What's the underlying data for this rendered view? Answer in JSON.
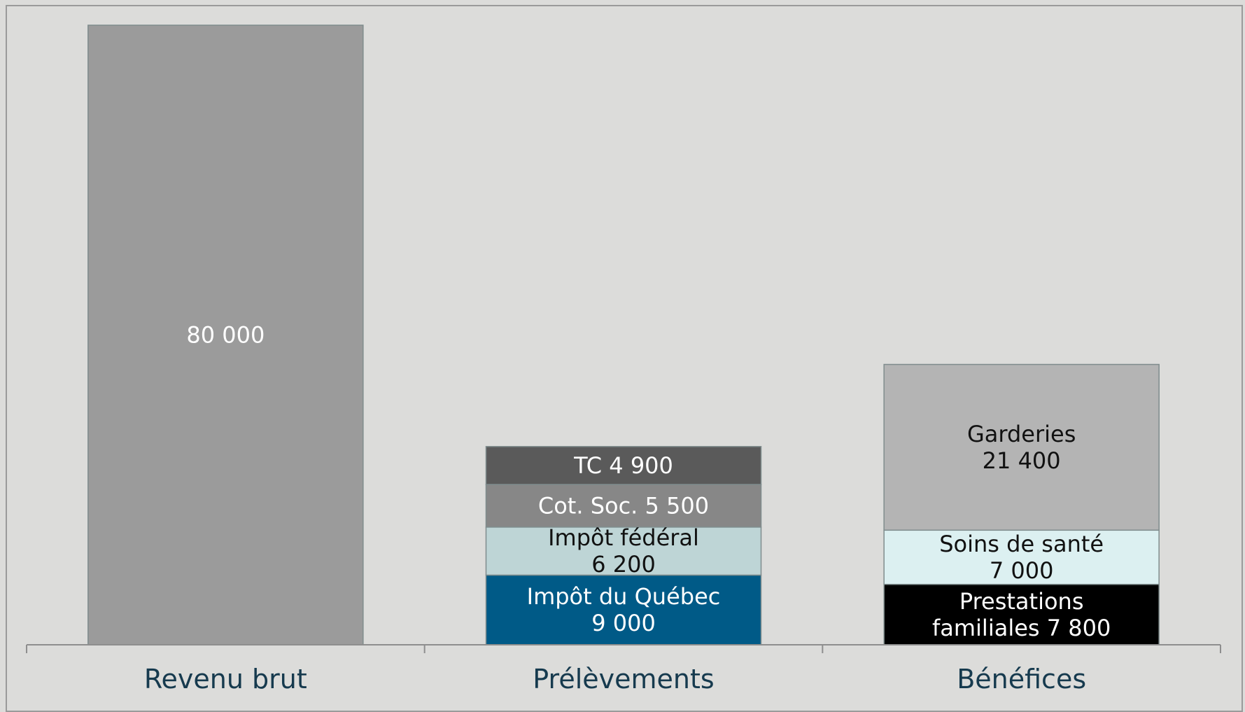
{
  "chart_data": {
    "type": "bar",
    "stacked": true,
    "categories": [
      "Revenu brut",
      "Prélèvements",
      "Bénéfices"
    ],
    "ylim": [
      0,
      80000
    ],
    "grid": false,
    "legend": "none",
    "stacks": [
      {
        "category": "Revenu brut",
        "segments": [
          {
            "lines": [
              "80 000"
            ],
            "value": 80000,
            "color": "#9b9b9b",
            "text_color": "#ffffff"
          }
        ]
      },
      {
        "category": "Prélèvements",
        "segments": [
          {
            "lines": [
              "Impôt du Québec",
              "9 000"
            ],
            "value": 9000,
            "color": "#005a87",
            "text_color": "#ffffff"
          },
          {
            "lines": [
              "Impôt fédéral",
              "6 200"
            ],
            "value": 6200,
            "color": "#bed5d6",
            "text_color": "#111111"
          },
          {
            "lines": [
              "Cot. Soc. 5 500"
            ],
            "value": 5500,
            "color": "#878787",
            "text_color": "#ffffff"
          },
          {
            "lines": [
              "TC 4 900"
            ],
            "value": 4900,
            "color": "#5a5a5a",
            "text_color": "#ffffff"
          }
        ]
      },
      {
        "category": "Bénéfices",
        "segments": [
          {
            "lines": [
              "Prestations",
              "familiales  7 800"
            ],
            "value": 7800,
            "color": "#000000",
            "text_color": "#ffffff"
          },
          {
            "lines": [
              "Soins de santé",
              "7 000"
            ],
            "value": 7000,
            "color": "#dcf0f1",
            "text_color": "#111111"
          },
          {
            "lines": [
              "Garderies",
              "21 400"
            ],
            "value": 21400,
            "color": "#b4b4b4",
            "text_color": "#111111"
          }
        ]
      }
    ]
  }
}
